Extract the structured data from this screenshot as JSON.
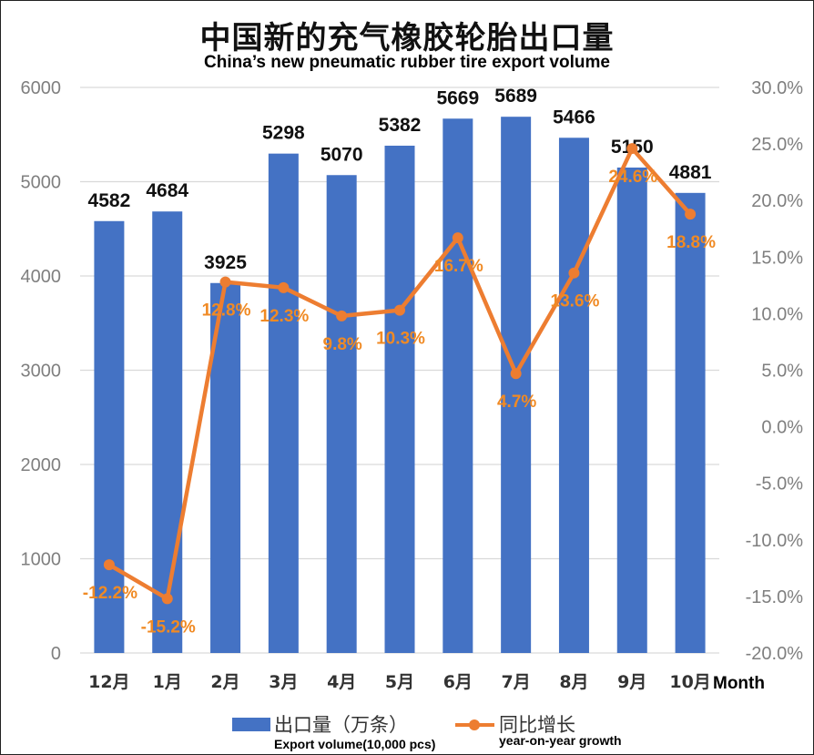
{
  "chart_data": {
    "type": "bar",
    "title": "中国新的充气橡胶轮胎出口量",
    "subtitle": "China’s new pneumatic rubber tire export volume",
    "xlabel": "Month",
    "categories": [
      "12月",
      "1月",
      "2月",
      "3月",
      "4月",
      "5月",
      "6月",
      "7月",
      "8月",
      "9月",
      "10月"
    ],
    "series": [
      {
        "name": "出口量（万条）",
        "name_en": "Export volume(10,000 pcs)",
        "type": "bar",
        "axis": "left",
        "color": "#4472C4",
        "values": [
          4582,
          4684,
          3925,
          5298,
          5070,
          5382,
          5669,
          5689,
          5466,
          5150,
          4881
        ],
        "labels": [
          "4582",
          "4684",
          "3925",
          "5298",
          "5070",
          "5382",
          "5669",
          "5689",
          "5466",
          "5150",
          "4881"
        ]
      },
      {
        "name": "同比增长",
        "name_en": "year-on-year growth",
        "type": "line",
        "axis": "right",
        "color": "#ED7D31",
        "values": [
          -12.2,
          -15.2,
          12.8,
          12.3,
          9.8,
          10.3,
          16.7,
          4.7,
          13.6,
          24.6,
          18.8
        ],
        "labels": [
          "-12.2%",
          "-15.2%",
          "12.8%",
          "12.3%",
          "9.8%",
          "10.3%",
          "16.7%",
          "4.7%",
          "13.6%",
          "24.6%",
          "18.8%"
        ]
      }
    ],
    "y_left": {
      "min": 0,
      "max": 6000,
      "ticks": [
        "0",
        "1000",
        "2000",
        "3000",
        "4000",
        "5000",
        "6000"
      ]
    },
    "y_right": {
      "min": -20,
      "max": 30,
      "ticks": [
        "-20.0%",
        "-15.0%",
        "-10.0%",
        "-5.0%",
        "0.0%",
        "5.0%",
        "10.0%",
        "15.0%",
        "20.0%",
        "25.0%",
        "30.0%"
      ]
    },
    "grid": true,
    "legend_position": "bottom"
  }
}
